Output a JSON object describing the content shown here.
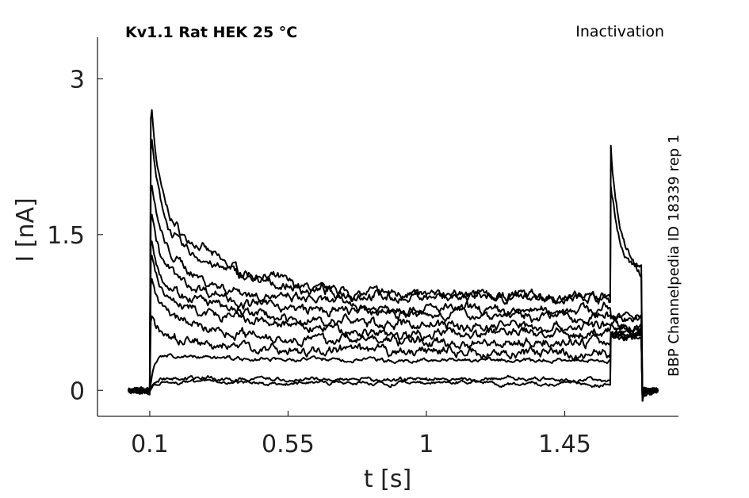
{
  "chart_data": {
    "type": "line",
    "title": "Kv1.1  Rat  HEK  25 °C",
    "protocol": "Inactivation",
    "side_label": "BBP Channelpedia ID 18339 rep 1",
    "xlabel": "t [s]",
    "ylabel": "I [nA]",
    "xlim": [
      -0.07,
      1.82
    ],
    "ylim": [
      -0.25,
      3.4
    ],
    "xticks": [
      0.1,
      0.55,
      1,
      1.45
    ],
    "xtick_labels": [
      "0.1",
      "0.55",
      "1",
      "1.45"
    ],
    "yticks": [
      0,
      1.5,
      3
    ],
    "ytick_labels": [
      "0",
      "1.5",
      "3"
    ],
    "grid": false,
    "line_color": "#000000",
    "pulse": {
      "t_on": 0.1,
      "t_step": 1.6,
      "t_off": 1.7,
      "baseline": 0
    },
    "series": [
      {
        "peak": 3.0,
        "plateau": 0.9,
        "tail": 1.15,
        "tail_peak": 2.35,
        "rising": false
      },
      {
        "peak": 2.65,
        "plateau": 0.88,
        "tail": 1.1,
        "tail_peak": 2.0,
        "rising": false
      },
      {
        "peak": 2.2,
        "plateau": 0.78,
        "tail": 0.7,
        "tail_peak": 0.7,
        "rising": false
      },
      {
        "peak": 1.9,
        "plateau": 0.72,
        "tail": 0.68,
        "tail_peak": 0.68,
        "rising": false
      },
      {
        "peak": 1.65,
        "plateau": 0.62,
        "tail": 0.62,
        "tail_peak": 0.62,
        "rising": false
      },
      {
        "peak": 1.45,
        "plateau": 0.55,
        "tail": 0.58,
        "tail_peak": 0.58,
        "rising": false
      },
      {
        "peak": 1.2,
        "plateau": 0.46,
        "tail": 0.56,
        "tail_peak": 0.56,
        "rising": false
      },
      {
        "peak": 0.78,
        "plateau": 0.36,
        "tail": 0.55,
        "tail_peak": 0.55,
        "rising": false
      },
      {
        "peak": 0.35,
        "plateau": 0.28,
        "tail": 0.54,
        "tail_peak": 0.54,
        "rising": true
      },
      {
        "peak": 0.12,
        "plateau": 0.1,
        "tail": 0.54,
        "tail_peak": 0.54,
        "rising": true
      },
      {
        "peak": 0.08,
        "plateau": 0.07,
        "tail": 0.54,
        "tail_peak": 0.54,
        "rising": true
      }
    ]
  }
}
